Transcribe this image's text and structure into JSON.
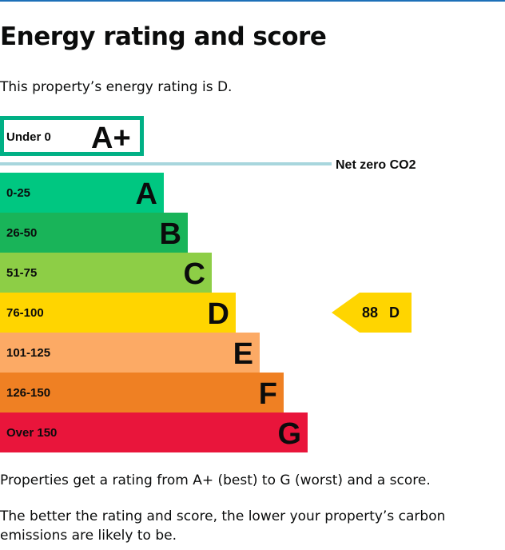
{
  "page": {
    "title": "Energy rating and score",
    "intro": "This property’s energy rating is D.",
    "footer_1": "Properties get a rating from A+ (best) to G (worst) and a score.",
    "footer_2": "The better the rating and score, the lower your property’s carbon emissions are likely to be."
  },
  "colors": {
    "accent_line": "#1d70b8",
    "net_zero_line": "#a8d6dd",
    "a_plus_border": "#00b085"
  },
  "chart_data": {
    "type": "bar",
    "bands": [
      {
        "letter": "A+",
        "range": "Under 0",
        "color": "#ffffff",
        "outlined": true
      },
      {
        "letter": "A",
        "range": "0-25",
        "color": "#00c781"
      },
      {
        "letter": "B",
        "range": "26-50",
        "color": "#19b459"
      },
      {
        "letter": "C",
        "range": "51-75",
        "color": "#8dce46"
      },
      {
        "letter": "D",
        "range": "76-100",
        "color": "#ffd500"
      },
      {
        "letter": "E",
        "range": "101-125",
        "color": "#fcaa65"
      },
      {
        "letter": "F",
        "range": "126-150",
        "color": "#ef8023"
      },
      {
        "letter": "G",
        "range": "Over 150",
        "color": "#e9153b"
      }
    ],
    "net_zero_label": "Net zero CO2",
    "current": {
      "score": 88,
      "letter": "D",
      "band_index": 4,
      "color": "#ffd500"
    }
  }
}
